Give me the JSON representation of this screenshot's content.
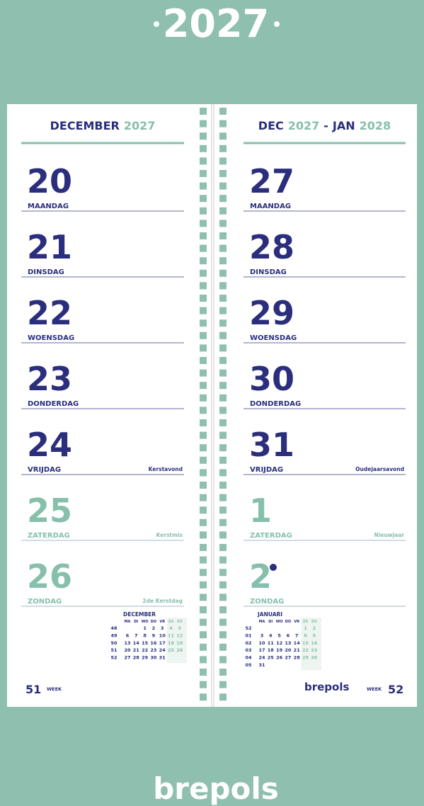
{
  "header": {
    "year": "2027"
  },
  "pages": [
    {
      "title": {
        "parts": [
          {
            "text": "DECEMBER",
            "accent": false
          },
          {
            "text": "2027",
            "accent": true
          }
        ]
      },
      "days": [
        {
          "number": "20",
          "weekday": "MAANDAG"
        },
        {
          "number": "21",
          "weekday": "DINSDAG"
        },
        {
          "number": "22",
          "weekday": "WOENSDAG"
        },
        {
          "number": "23",
          "weekday": "DONDERDAG"
        },
        {
          "number": "24",
          "weekday": "VRIJDAG",
          "note": "Kerstavond"
        },
        {
          "number": "25",
          "weekday": "ZATERDAG",
          "note": "Kerstmis"
        },
        {
          "number": "26",
          "weekday": "ZONDAG",
          "note": "2de Kerstdag"
        }
      ],
      "mini_calendar": {
        "title": "DECEMBER",
        "weekdays": [
          "MA",
          "DI",
          "WO",
          "DO",
          "VR",
          "ZA",
          "ZO"
        ],
        "rows": [
          {
            "week": "48",
            "days": [
              null,
              null,
              "1",
              "2",
              "3",
              "4",
              "5"
            ]
          },
          {
            "week": "49",
            "days": [
              "6",
              "7",
              "8",
              "9",
              "10",
              "11",
              "12"
            ]
          },
          {
            "week": "50",
            "days": [
              "13",
              "14",
              "15",
              "16",
              "17",
              "18",
              "19"
            ]
          },
          {
            "week": "51",
            "days": [
              "20",
              "21",
              "22",
              "23",
              "24",
              "25",
              "26"
            ]
          },
          {
            "week": "52",
            "days": [
              "27",
              "28",
              "29",
              "30",
              "31",
              null,
              null
            ]
          }
        ]
      },
      "footer": {
        "week_number": "51",
        "week_label": "WEEK"
      }
    },
    {
      "title": {
        "parts": [
          {
            "text": "DEC",
            "accent": false
          },
          {
            "text": "2027",
            "accent": true
          },
          {
            "text": "-",
            "accent": false
          },
          {
            "text": "JAN",
            "accent": false
          },
          {
            "text": "2028",
            "accent": true
          }
        ]
      },
      "days": [
        {
          "number": "27",
          "weekday": "MAANDAG"
        },
        {
          "number": "28",
          "weekday": "DINSDAG"
        },
        {
          "number": "29",
          "weekday": "WOENSDAG"
        },
        {
          "number": "30",
          "weekday": "DONDERDAG"
        },
        {
          "number": "31",
          "weekday": "VRIJDAG",
          "note": "Oudejaarsavond"
        },
        {
          "number": "1",
          "weekday": "ZATERDAG",
          "note": "Nieuwjaar"
        },
        {
          "number": "2",
          "weekday": "ZONDAG"
        }
      ],
      "mini_calendar": {
        "title": "JANUARI",
        "weekdays": [
          "MA",
          "DI",
          "WO",
          "DO",
          "VR",
          "ZA",
          "ZO"
        ],
        "rows": [
          {
            "week": "52",
            "days": [
              null,
              null,
              null,
              null,
              null,
              "1",
              "2"
            ]
          },
          {
            "week": "01",
            "days": [
              "3",
              "4",
              "5",
              "6",
              "7",
              "8",
              "9"
            ]
          },
          {
            "week": "02",
            "days": [
              "10",
              "11",
              "12",
              "13",
              "14",
              "15",
              "16"
            ]
          },
          {
            "week": "03",
            "days": [
              "17",
              "18",
              "19",
              "20",
              "21",
              "22",
              "23"
            ]
          },
          {
            "week": "04",
            "days": [
              "24",
              "25",
              "26",
              "27",
              "28",
              "29",
              "30"
            ]
          },
          {
            "week": "05",
            "days": [
              "31",
              null,
              null,
              null,
              null,
              null,
              null
            ]
          }
        ]
      },
      "footer": {
        "brand": "brepols",
        "week_label": "WEEK",
        "week_number": "52"
      }
    }
  ],
  "brand": "brepols"
}
